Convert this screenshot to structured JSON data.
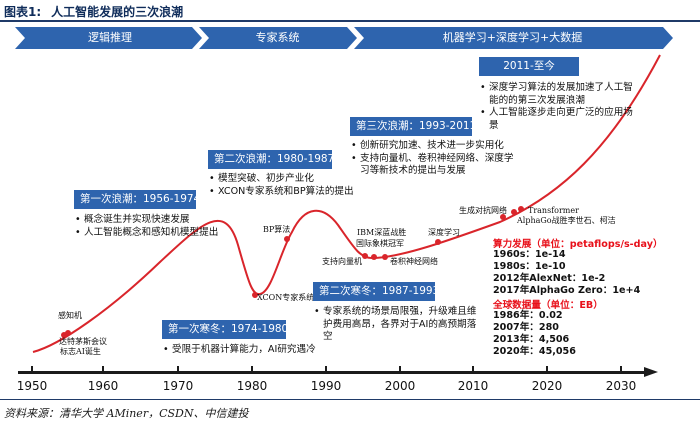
{
  "header": {
    "figure_number": "图表1:",
    "title": "人工智能发展的三次浪潮"
  },
  "bands": [
    {
      "label": "逻辑推理"
    },
    {
      "label": "专家系统"
    },
    {
      "label": "机器学习+深度学习+大数据"
    }
  ],
  "eras": [
    {
      "title": "第一次浪潮：1956-1974",
      "bullets": [
        "概念诞生并实现快速发展",
        "人工智能概念和感知机模型提出"
      ]
    },
    {
      "title": "第二次浪潮：1980-1987",
      "bullets": [
        "模型突破、初步产业化",
        "XCON专家系统和BP算法的提出"
      ]
    },
    {
      "title": "第三次浪潮：1993-2011",
      "bullets": [
        "创新研究加速、技术进一步实用化",
        "支持向量机、卷积神经网络、深度学习等新技术的提出与发展"
      ]
    },
    {
      "title": "2011-至今",
      "bullets": [
        "深度学习算法的发展加速了人工智能的的第三次发展浪潮",
        "人工智能逐步走向更广泛的应用场景"
      ]
    },
    {
      "title": "第一次寒冬：1974-1980",
      "bullets": [
        "受限于机器计算能力，AI研究遇冷"
      ]
    },
    {
      "title": "第二次寒冬：1987-1993",
      "bullets": [
        "专家系统的场景局限强，升级难且维护费用高昂，各界对于AI的高预期落空"
      ]
    }
  ],
  "milestones": [
    {
      "label": "感知机"
    },
    {
      "label": "达特茅斯会议"
    },
    {
      "label": "标志AI诞生"
    },
    {
      "label": "XCON专家系统"
    },
    {
      "label": "BP算法"
    },
    {
      "label": "支持向量机"
    },
    {
      "label": "IBM深蓝战胜"
    },
    {
      "label": "国际象棋冠军"
    },
    {
      "label": "卷积神经网络"
    },
    {
      "label": "深度学习"
    },
    {
      "label": "生成对抗网络"
    },
    {
      "label": "Transformer"
    },
    {
      "label": "AlphaGo战胜李世石、柯洁"
    }
  ],
  "compute": {
    "heading": "算力发展（单位：petaflops/s-day）",
    "items": [
      "1960s：1e-14",
      "1980s：1e-10",
      "2012年AlexNet：1e-2",
      "2017年AlphaGo Zero：1e+4"
    ]
  },
  "data_volume": {
    "heading": "全球数据量（单位：EB）",
    "items": [
      "1986年：0.02",
      "2007年：280",
      "2013年：4,506",
      "2020年：45,056"
    ]
  },
  "axis": {
    "ticks": [
      "1950",
      "1960",
      "1970",
      "1980",
      "1990",
      "2000",
      "2010",
      "2020",
      "2030"
    ]
  },
  "source": "资料来源：清华大学 AMiner，CSDN、中信建投",
  "colors": {
    "band": "#2e64ae",
    "curve": "#d9252b",
    "dot": "#d9252b",
    "highlight": "#e8101a",
    "rule": "#1f3a68"
  }
}
